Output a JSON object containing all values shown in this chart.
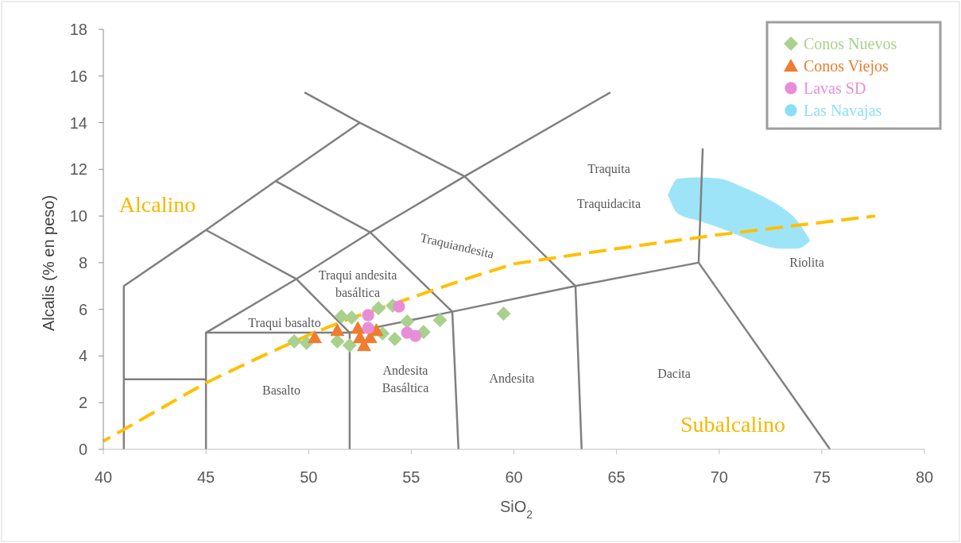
{
  "chart_data": {
    "type": "scatter",
    "xlabel": "SiO$_{2}$",
    "ylabel": "Alcalis (% en peso)",
    "xlim": [
      40,
      80
    ],
    "xticks": [
      40,
      45,
      50,
      55,
      60,
      65,
      70,
      75,
      80
    ],
    "ylim": [
      0,
      18
    ],
    "yticks": [
      0,
      2,
      4,
      6,
      8,
      10,
      12,
      14,
      16,
      18
    ],
    "grid": false,
    "legend": "top right",
    "series": [
      {
        "type": "line",
        "color": "#808080",
        "marker": "none",
        "x": [
          41,
          41,
          45,
          48.4,
          52.5
        ],
        "values": [
          0,
          7,
          9.4,
          11.5,
          14
        ]
      },
      {
        "type": "line",
        "color": "#808080",
        "marker": "none",
        "x": [
          49.8,
          52.5,
          57.6,
          63,
          63.3
        ],
        "values": [
          15.3,
          14,
          11.7,
          7,
          0
        ]
      },
      {
        "type": "line",
        "color": "#808080",
        "marker": "none",
        "x": [
          41,
          45
        ],
        "values": [
          3,
          3
        ]
      },
      {
        "type": "line",
        "color": "#808080",
        "marker": "none",
        "x": [
          45,
          45,
          52,
          52
        ],
        "values": [
          0,
          5,
          5,
          0
        ]
      },
      {
        "type": "line",
        "color": "#808080",
        "marker": "none",
        "x": [
          45,
          49.4,
          53,
          57.6,
          64.7
        ],
        "values": [
          5,
          7.3,
          9.3,
          11.7,
          15.3
        ]
      },
      {
        "type": "line",
        "color": "#808080",
        "marker": "none",
        "x": [
          45,
          49.4,
          52
        ],
        "values": [
          9.4,
          7.3,
          5
        ]
      },
      {
        "type": "line",
        "color": "#808080",
        "marker": "none",
        "x": [
          48.4,
          53,
          57,
          57.3
        ],
        "values": [
          11.5,
          9.3,
          5.9,
          0
        ]
      },
      {
        "type": "line",
        "color": "#808080",
        "marker": "none",
        "x": [
          52,
          57,
          63,
          69,
          69.2
        ],
        "values": [
          5,
          5.9,
          7,
          8,
          12.9
        ]
      },
      {
        "type": "line",
        "color": "#808080",
        "marker": "none",
        "x": [
          69,
          75.4
        ],
        "values": [
          8,
          0
        ]
      },
      {
        "type": "line",
        "color": "#ffc000",
        "marker": "none",
        "line_style": "dashed",
        "x": [
          40,
          45,
          47.5,
          50,
          52,
          55,
          58,
          60,
          65,
          70,
          77.6
        ],
        "values": [
          0.35,
          2.85,
          3.9,
          4.9,
          5.6,
          6.5,
          7.4,
          7.95,
          8.6,
          9.2,
          10.0
        ]
      },
      {
        "name": "Conos Nuevos",
        "color": "#a9d18e",
        "marker": "diamond",
        "x": [
          49.3,
          49.9,
          51.6,
          52.1,
          51.4,
          52.0,
          53.4,
          54.1,
          54.8,
          53.6,
          54.2,
          55.6,
          56.4,
          59.5
        ],
        "values": [
          4.63,
          4.56,
          5.7,
          5.65,
          4.63,
          4.46,
          6.05,
          6.16,
          5.48,
          4.97,
          4.73,
          5.03,
          5.54,
          5.82
        ]
      },
      {
        "name": "Conos Viejos",
        "color": "#ed7d31",
        "marker": "triangle",
        "x": [
          50.3,
          51.4,
          52.4,
          53.3,
          52.7,
          52.5,
          53.0
        ],
        "values": [
          4.8,
          5.1,
          5.2,
          5.1,
          4.46,
          4.8,
          4.8
        ]
      },
      {
        "name": "Lavas SD",
        "color": "#e88ed8",
        "marker": "circle",
        "x": [
          52.9,
          54.4,
          52.9,
          54.8,
          55.2
        ],
        "values": [
          5.75,
          6.12,
          5.2,
          5.0,
          4.86
        ]
      },
      {
        "type": "line",
        "name": "Las Navajas",
        "color": "#8ddff8",
        "marker": "none",
        "x": [
          67.5,
          68,
          69,
          70,
          71,
          72,
          73,
          73.8,
          74.4
        ],
        "values": [
          null,
          null,
          null,
          null,
          null,
          null,
          null,
          null,
          null
        ],
        "upper": [
          10.9,
          11.6,
          11.65,
          11.6,
          11.3,
          10.9,
          10.4,
          9.8,
          9.0
        ],
        "lower": [
          10.9,
          10.1,
          9.8,
          9.5,
          9.15,
          8.8,
          8.6,
          8.6,
          8.9
        ]
      }
    ],
    "annotations": [
      "Traquita",
      "Traquidacita",
      "Traquiandesita",
      "Traqui andesita basáltica",
      "Traqui basalto",
      "Basalto",
      "Andesita Basáltica",
      "Andesita",
      "Dacita",
      "Riolita",
      "Alcalino",
      "Subalcalino"
    ]
  }
}
